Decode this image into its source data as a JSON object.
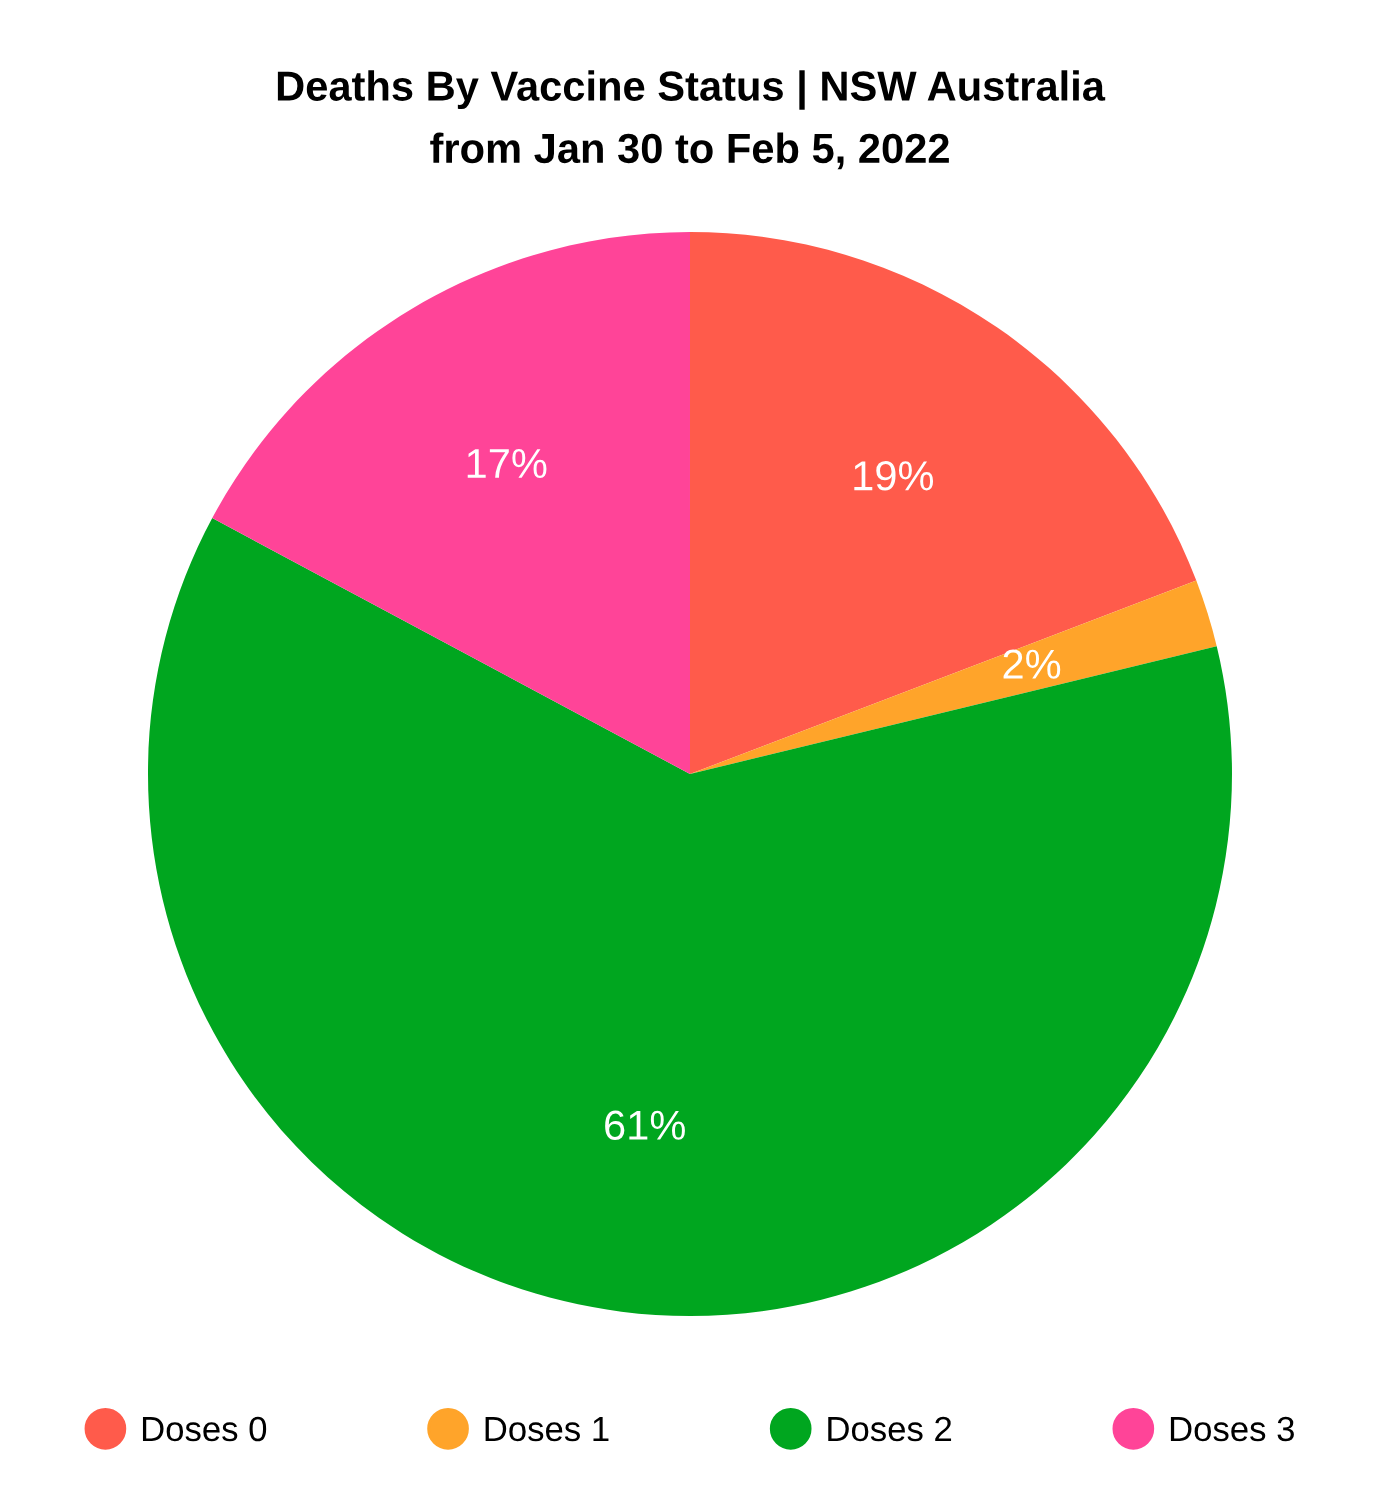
{
  "chart_data": {
    "type": "pie",
    "title": "Deaths By Vaccine Status | NSW Australia",
    "subtitle": "from Jan 30 to Feb 5, 2022",
    "categories": [
      "Doses 0",
      "Doses 1",
      "Doses 2",
      "Doses 3"
    ],
    "values": [
      19,
      2,
      61,
      17
    ],
    "value_labels": [
      "19%",
      "2%",
      "61%",
      "17%"
    ],
    "colors": [
      "#ff5b4b",
      "#ffa42a",
      "#00a61f",
      "#ff4498"
    ],
    "legend": "bottom"
  }
}
